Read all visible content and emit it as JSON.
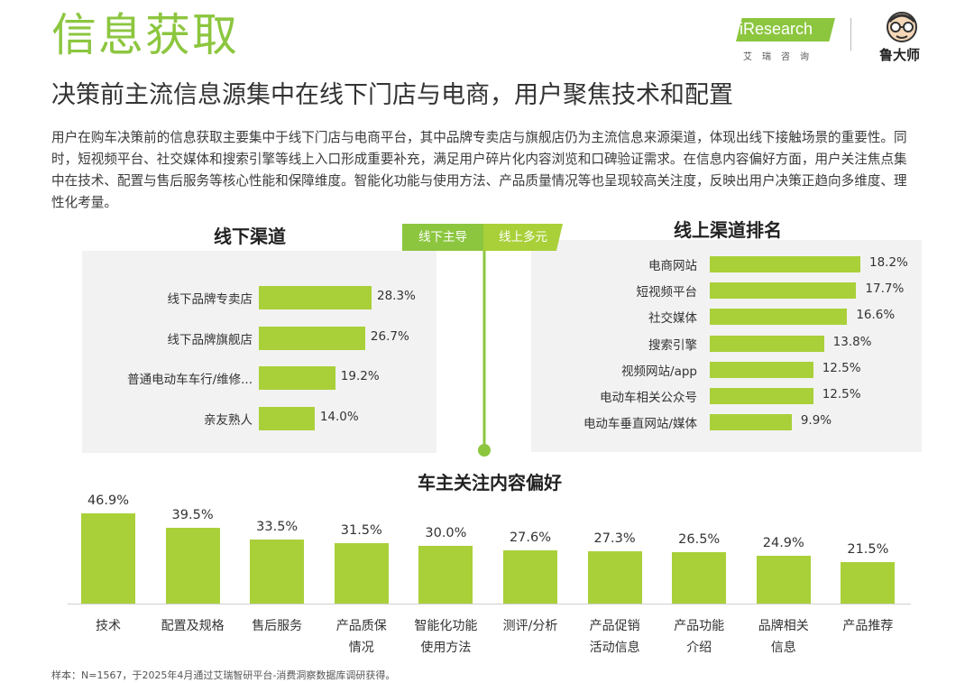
{
  "header": {
    "title": "信息获取",
    "subtitle": "决策前主流信息源集中在线下门店与电商，用户聚焦技术和配置",
    "intro": "用户在购车决策前的信息获取主要集中于线下门店与电商平台，其中品牌专卖店与旗舰店仍为主流信息来源渠道，体现出线下接触场景的重要性。同时，短视频平台、社交媒体和搜索引擎等线上入口形成重要补充，满足用户碎片化内容浏览和口碑验证需求。在信息内容偏好方面，用户关注焦点集中在技术、配置与售后服务等核心性能和保障维度。智能化功能与使用方法、产品质量情况等也呈现较高关注度，反映出用户决策正趋向多维度、理性化考量。"
  },
  "logos": {
    "iresearch": "iResearch",
    "iresearch_cn": "艾瑞咨询",
    "ludashi": "鲁大师"
  },
  "tags": {
    "left": "线下主导",
    "right": "线上多元"
  },
  "colors": {
    "accent": "#8cc63f",
    "bar": "#a9d039",
    "panel": "#f2f2f2"
  },
  "chart_data": [
    {
      "type": "bar",
      "orientation": "horizontal",
      "title": "线下渠道",
      "categories": [
        "线下品牌专卖店",
        "线下品牌旗舰店",
        "普通电动车车行/维修...",
        "亲友熟人"
      ],
      "values": [
        28.3,
        26.7,
        19.2,
        14.0
      ],
      "labels": [
        "28.3%",
        "26.7%",
        "19.2%",
        "14.0%"
      ],
      "unit": "%"
    },
    {
      "type": "bar",
      "orientation": "horizontal",
      "title": "线上渠道排名",
      "categories": [
        "电商网站",
        "短视频平台",
        "社交媒体",
        "搜索引擎",
        "视频网站/app",
        "电动车相关公众号",
        "电动车垂直网站/媒体"
      ],
      "values": [
        18.2,
        17.7,
        16.6,
        13.8,
        12.5,
        12.5,
        9.9
      ],
      "labels": [
        "18.2%",
        "17.7%",
        "16.6%",
        "13.8%",
        "12.5%",
        "12.5%",
        "9.9%"
      ],
      "unit": "%"
    },
    {
      "type": "bar",
      "orientation": "vertical",
      "title": "车主关注内容偏好",
      "categories": [
        "技术",
        "配置及规格",
        "售后服务",
        "产品质保情况",
        "智能化功能使用方法",
        "测评/分析",
        "产品促销活动信息",
        "产品功能介绍",
        "品牌相关信息",
        "产品推荐"
      ],
      "category_lines": [
        [
          "技术"
        ],
        [
          "配置及规格"
        ],
        [
          "售后服务"
        ],
        [
          "产品质保",
          "情况"
        ],
        [
          "智能化功能",
          "使用方法"
        ],
        [
          "测评/分析"
        ],
        [
          "产品促销",
          "活动信息"
        ],
        [
          "产品功能",
          "介绍"
        ],
        [
          "品牌相关",
          "信息"
        ],
        [
          "产品推荐"
        ]
      ],
      "values": [
        46.9,
        39.5,
        33.5,
        31.5,
        30.0,
        27.6,
        27.3,
        26.5,
        24.9,
        21.5
      ],
      "labels": [
        "46.9%",
        "39.5%",
        "33.5%",
        "31.5%",
        "30.0%",
        "27.6%",
        "27.3%",
        "26.5%",
        "24.9%",
        "21.5%"
      ],
      "unit": "%"
    }
  ],
  "footnote": "样本：N=1567，于2025年4月通过艾瑞智研平台-消费洞察数据库调研获得。"
}
